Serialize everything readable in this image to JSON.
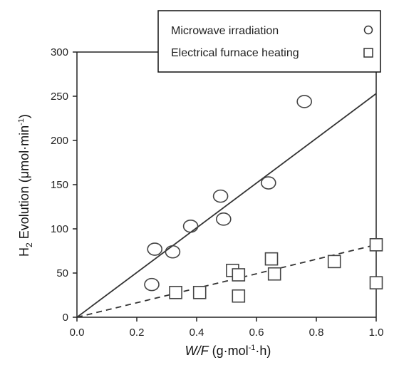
{
  "chart_data": {
    "type": "scatter",
    "xlabel_main": "W/F",
    "xlabel_unit_pre": "(g·mol",
    "xlabel_unit_sup": "-1",
    "xlabel_unit_post": "·h)",
    "ylabel_main": "H",
    "ylabel_sub": "2",
    "ylabel_rest": " Evolution  (μmol·min",
    "ylabel_sup": "-1",
    "ylabel_close": ")",
    "xlim": [
      0.0,
      1.0
    ],
    "ylim": [
      0,
      300
    ],
    "xticks": [
      "0.0",
      "0.2",
      "0.4",
      "0.6",
      "0.8",
      "1.0"
    ],
    "xtick_values": [
      0.0,
      0.2,
      0.4,
      0.6,
      0.8,
      1.0
    ],
    "yticks": [
      "0",
      "50",
      "100",
      "150",
      "200",
      "250",
      "300"
    ],
    "ytick_values": [
      0,
      50,
      100,
      150,
      200,
      250,
      300
    ],
    "legend_position": "top-right",
    "grid": false,
    "series": [
      {
        "name": "Microwave irradiation",
        "marker": "circle",
        "color": "#444444",
        "points": [
          {
            "x": 0.25,
            "y": 37
          },
          {
            "x": 0.26,
            "y": 77
          },
          {
            "x": 0.32,
            "y": 74
          },
          {
            "x": 0.38,
            "y": 103
          },
          {
            "x": 0.48,
            "y": 137
          },
          {
            "x": 0.49,
            "y": 111
          },
          {
            "x": 0.64,
            "y": 152
          },
          {
            "x": 0.76,
            "y": 244
          }
        ],
        "fit": {
          "style": "solid",
          "from": [
            0.0,
            0
          ],
          "to": [
            1.0,
            253
          ]
        }
      },
      {
        "name": "Electrical furnace heating",
        "marker": "square",
        "color": "#444444",
        "points": [
          {
            "x": 0.33,
            "y": 28
          },
          {
            "x": 0.41,
            "y": 28
          },
          {
            "x": 0.52,
            "y": 53
          },
          {
            "x": 0.54,
            "y": 48
          },
          {
            "x": 0.54,
            "y": 24
          },
          {
            "x": 0.65,
            "y": 66
          },
          {
            "x": 0.66,
            "y": 49
          },
          {
            "x": 0.86,
            "y": 63
          },
          {
            "x": 1.0,
            "y": 82
          },
          {
            "x": 1.0,
            "y": 39
          }
        ],
        "fit": {
          "style": "dashed",
          "from": [
            0.0,
            0
          ],
          "to": [
            1.0,
            82
          ]
        }
      }
    ]
  }
}
